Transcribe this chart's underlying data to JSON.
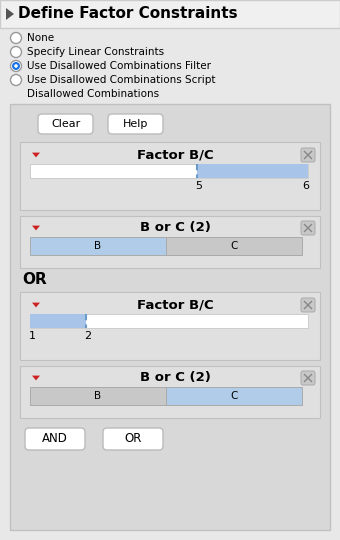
{
  "title": "Define Factor Constraints",
  "bg_color": "#e8e8e8",
  "inner_bg": "#d8d8d8",
  "white": "#ffffff",
  "blue_fill": "#a8c4e8",
  "blue_sel": "#b0cce8",
  "gray_sel": "#c8c8c8",
  "block_bg": "#e0e0e0",
  "radio_options": [
    "None",
    "Specify Linear Constraints",
    "Use Disallowed Combinations Filter",
    "Use Disallowed Combinations Script"
  ],
  "selected_radio": 2,
  "disallowed_label": "Disallowed Combinations",
  "btn_clear": "Clear",
  "btn_help": "Help",
  "btn_and": "AND",
  "btn_or_bottom": "OR",
  "or_label": "OR",
  "factor_label": "Factor B/C",
  "borc_label": "B or C (2)",
  "b_label": "B",
  "c_label": "C",
  "tick1_5": "5",
  "tick1_6": "6",
  "tick2_1": "1",
  "tick2_2": "2"
}
